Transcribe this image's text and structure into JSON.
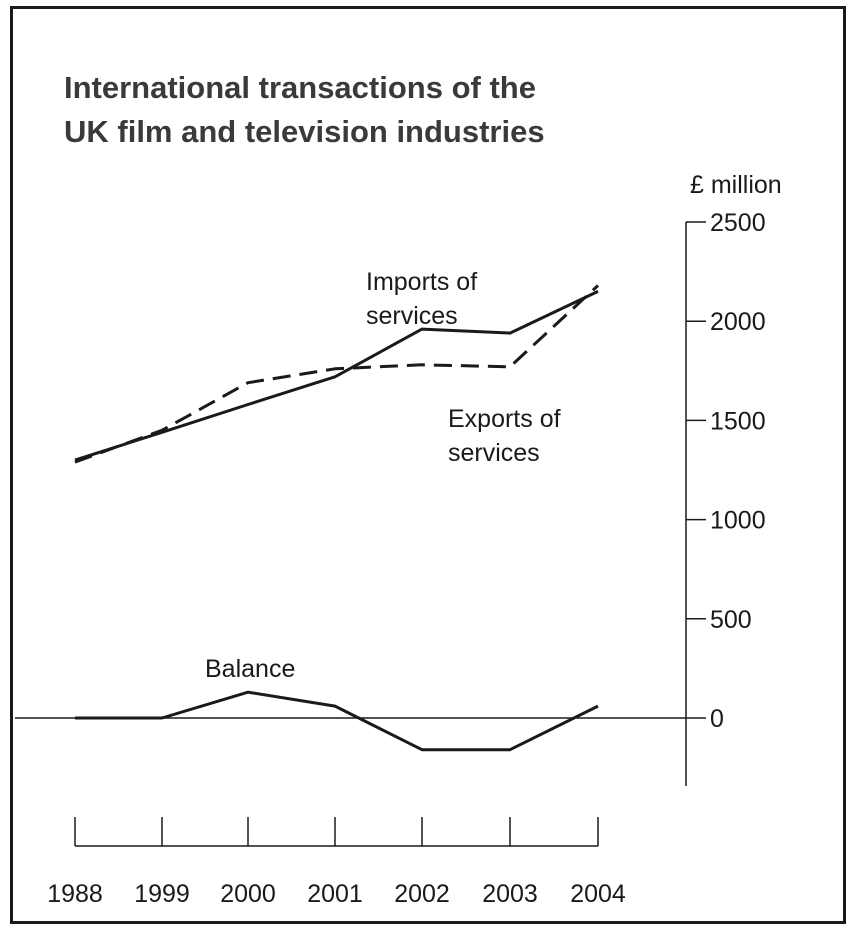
{
  "chart_data": {
    "type": "line",
    "title_line1": "International transactions of the",
    "title_line2": "UK film and television industries",
    "ylabel": "£ million",
    "xlabel": "",
    "categories": [
      "1988",
      "1999",
      "2000",
      "2001",
      "2002",
      "2003",
      "2004"
    ],
    "ylim": [
      -320,
      2500
    ],
    "yticks": [
      "2500",
      "2000",
      "1500",
      "1000",
      "500",
      "0"
    ],
    "ytick_values": [
      2500,
      2000,
      1500,
      1000,
      500,
      0
    ],
    "grid": false,
    "legend": "none",
    "series": [
      {
        "name": "Imports of services",
        "label_line1": "Imports of",
        "label_line2": "services",
        "style": "solid",
        "values": [
          1300,
          1440,
          1580,
          1720,
          1960,
          1940,
          2150
        ]
      },
      {
        "name": "Exports of services",
        "label_line1": "Exports of",
        "label_line2": "services",
        "style": "dashed",
        "values": [
          1290,
          1450,
          1690,
          1760,
          1780,
          1770,
          2180
        ]
      },
      {
        "name": "Balance",
        "label_line1": "Balance",
        "label_line2": "",
        "style": "solid",
        "values": [
          0,
          0,
          130,
          60,
          -160,
          -160,
          60
        ]
      }
    ]
  }
}
